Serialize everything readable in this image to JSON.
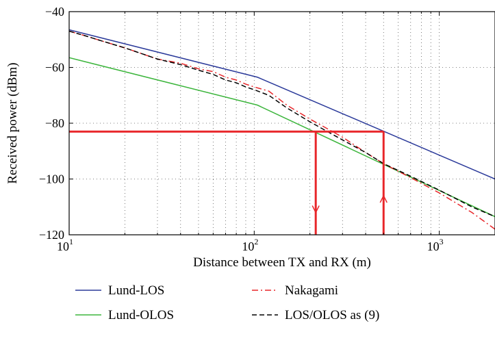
{
  "chart_data": {
    "type": "line",
    "title": "",
    "xlabel": "Distance between TX and RX (m)",
    "ylabel": "Received power (dBm)",
    "xscale": "log",
    "xlim": [
      10,
      2000
    ],
    "ylim": [
      -120,
      -40
    ],
    "grid": "dotted",
    "x_ticks": [
      {
        "value": 10,
        "base": "10",
        "exp": "1"
      },
      {
        "value": 100,
        "base": "10",
        "exp": "2"
      },
      {
        "value": 1000,
        "base": "10",
        "exp": "3"
      }
    ],
    "y_ticks": [
      {
        "value": -40,
        "label": "−40"
      },
      {
        "value": -60,
        "label": "−60"
      },
      {
        "value": -80,
        "label": "−80"
      },
      {
        "value": -100,
        "label": "−100"
      },
      {
        "value": -120,
        "label": "−120"
      }
    ],
    "legend_position": "bottom",
    "series": [
      {
        "name": "Lund-LOS",
        "color": "#2b3a9a",
        "dash": "solid",
        "x": [
          10,
          104,
          2000
        ],
        "y": [
          -46.5,
          -63.5,
          -100
        ]
      },
      {
        "name": "Lund-OLOS",
        "color": "#3cb53c",
        "dash": "solid",
        "x": [
          10,
          104,
          2000
        ],
        "y": [
          -56.5,
          -73.5,
          -113.5
        ]
      },
      {
        "name": "Nakagami",
        "color": "#e8262a",
        "dash": "dashdot",
        "x": [
          10,
          12,
          15,
          20,
          30,
          40,
          50,
          60,
          70,
          80,
          90,
          100,
          120,
          150,
          200,
          300,
          400,
          500,
          700,
          1000,
          1500,
          2000
        ],
        "y": [
          -47,
          -48.5,
          -50.5,
          -53,
          -57,
          -58.5,
          -60.5,
          -61.5,
          -63.5,
          -64.5,
          -66,
          -67,
          -68.5,
          -73.5,
          -78.5,
          -85,
          -90.5,
          -94.5,
          -99.5,
          -105,
          -112,
          -118
        ]
      },
      {
        "name": "LOS/OLOS as (9)",
        "color": "#000000",
        "dash": "dashed",
        "x": [
          10,
          12,
          15,
          20,
          30,
          40,
          50,
          60,
          70,
          80,
          90,
          100,
          120,
          150,
          200,
          300,
          400,
          500,
          700,
          1000,
          1500,
          2000
        ],
        "y": [
          -47,
          -48.5,
          -50.5,
          -53,
          -57,
          -59,
          -61,
          -62.5,
          -64.5,
          -65.5,
          -67,
          -68,
          -70,
          -74.5,
          -79.5,
          -86,
          -90.5,
          -94.5,
          -99,
          -104,
          -110,
          -113.5
        ]
      }
    ],
    "annotations": [
      {
        "name": "threshold-line",
        "color": "#e8262a",
        "x": [
          10,
          500
        ],
        "y": [
          -83,
          -83
        ]
      },
      {
        "name": "drop-left",
        "color": "#e8262a",
        "x": [
          215,
          215
        ],
        "y": [
          -83,
          -120
        ],
        "arrow": "down",
        "arrow_at": -112
      },
      {
        "name": "drop-right",
        "color": "#e8262a",
        "x": [
          500,
          500
        ],
        "y": [
          -120,
          -83
        ],
        "arrow": "up",
        "arrow_at": -106
      }
    ]
  }
}
